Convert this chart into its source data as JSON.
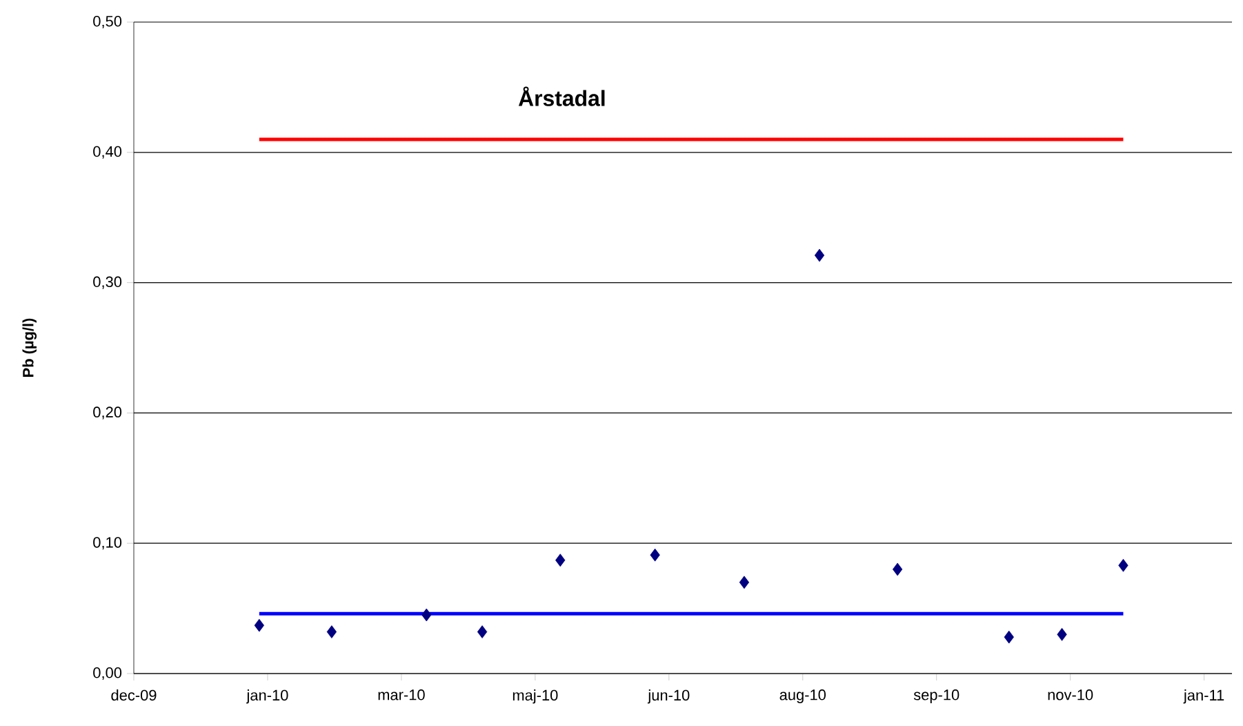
{
  "chart_data": {
    "type": "scatter",
    "title": "Årstadal",
    "ylabel": "Pb (µg/l)",
    "series": [
      {
        "color": "#000080",
        "x": [
          "2010-01-28",
          "2010-02-23",
          "2010-03-29",
          "2010-04-18",
          "2010-05-16",
          "2010-06-19",
          "2010-07-21",
          "2010-08-17",
          "2010-09-14",
          "2010-10-24",
          "2010-11-12",
          "2010-12-04"
        ],
        "values": [
          0.037,
          0.032,
          0.045,
          0.032,
          0.087,
          0.091,
          0.07,
          0.321,
          0.08,
          0.028,
          0.03,
          0.083
        ]
      },
      {
        "type": "line",
        "color": "#ff0000",
        "marker": "none",
        "x": [
          "2010-01-28",
          "2010-12-04"
        ],
        "values": [
          0.41,
          0.41
        ]
      },
      {
        "type": "line",
        "color": "#0000ff",
        "marker": "none",
        "x": [
          "2010-01-28",
          "2010-12-04"
        ],
        "values": [
          0.046,
          0.046
        ]
      }
    ],
    "marker": "diamond",
    "grid": "y",
    "xlim": [
      "2009-12-14",
      "2011-01-12"
    ],
    "xticks": [
      {
        "value": "2009-12-14",
        "label": "dec-09"
      },
      {
        "value": "2010-01-31",
        "label": "jan-10"
      },
      {
        "value": "2010-03-20",
        "label": "mar-10"
      },
      {
        "value": "2010-05-07",
        "label": "maj-10"
      },
      {
        "value": "2010-06-24",
        "label": "jun-10"
      },
      {
        "value": "2010-08-11",
        "label": "aug-10"
      },
      {
        "value": "2010-09-28",
        "label": "sep-10"
      },
      {
        "value": "2010-11-15",
        "label": "nov-10"
      },
      {
        "value": "2011-01-02",
        "label": "jan-11"
      }
    ],
    "ylim": [
      0,
      0.5
    ],
    "yticks": [
      {
        "value": 0,
        "label": "0,00"
      },
      {
        "value": 0.1,
        "label": "0,10"
      },
      {
        "value": 0.2,
        "label": "0,20"
      },
      {
        "value": 0.3,
        "label": "0,30"
      },
      {
        "value": 0.4,
        "label": "0,40"
      },
      {
        "value": 0.5,
        "label": "0,50"
      }
    ]
  }
}
